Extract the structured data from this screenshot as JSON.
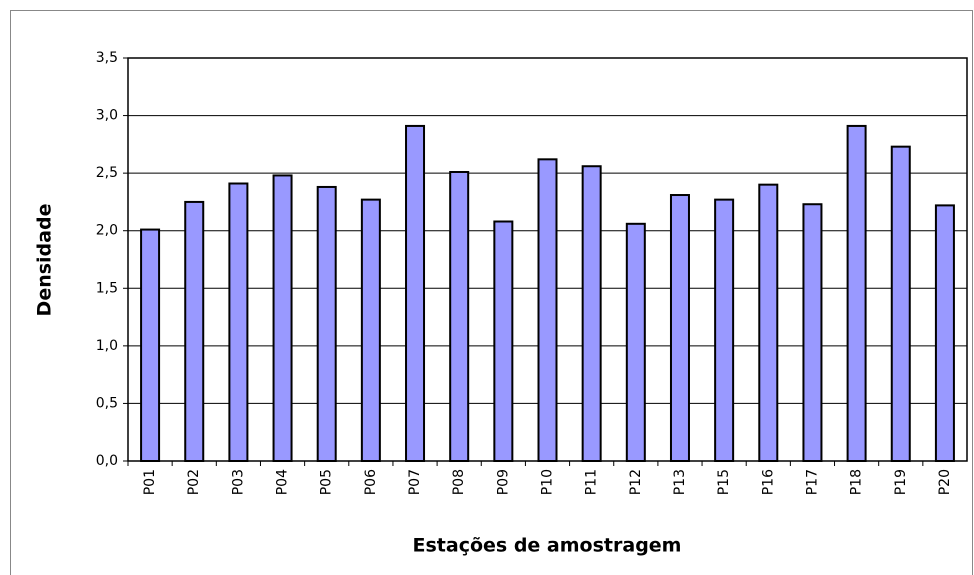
{
  "chart_data": {
    "type": "bar",
    "x_label": "Estações de amostragem",
    "y_label": "Densidade",
    "categories": [
      "P01",
      "P02",
      "P03",
      "P04",
      "P05",
      "P06",
      "P07",
      "P08",
      "P09",
      "P10",
      "P11",
      "P12",
      "P13",
      "P15",
      "P16",
      "P17",
      "P18",
      "P19",
      "P20"
    ],
    "values": [
      2.01,
      2.25,
      2.41,
      2.48,
      2.38,
      2.27,
      2.91,
      2.51,
      2.08,
      2.62,
      2.56,
      2.06,
      2.31,
      2.27,
      2.4,
      2.23,
      2.91,
      2.73,
      2.22
    ],
    "color": "#9999ff",
    "ylim": [
      0,
      3.5
    ],
    "yticks": [
      {
        "value": 0,
        "label": "0,0"
      },
      {
        "value": 0.5,
        "label": "0,5"
      },
      {
        "value": 1,
        "label": "1,0"
      },
      {
        "value": 1.5,
        "label": "1,5"
      },
      {
        "value": 2,
        "label": "2,0"
      },
      {
        "value": 2.5,
        "label": "2,5"
      },
      {
        "value": 3,
        "label": "3,0"
      },
      {
        "value": 3.5,
        "label": "3,5"
      }
    ],
    "grid": true
  }
}
